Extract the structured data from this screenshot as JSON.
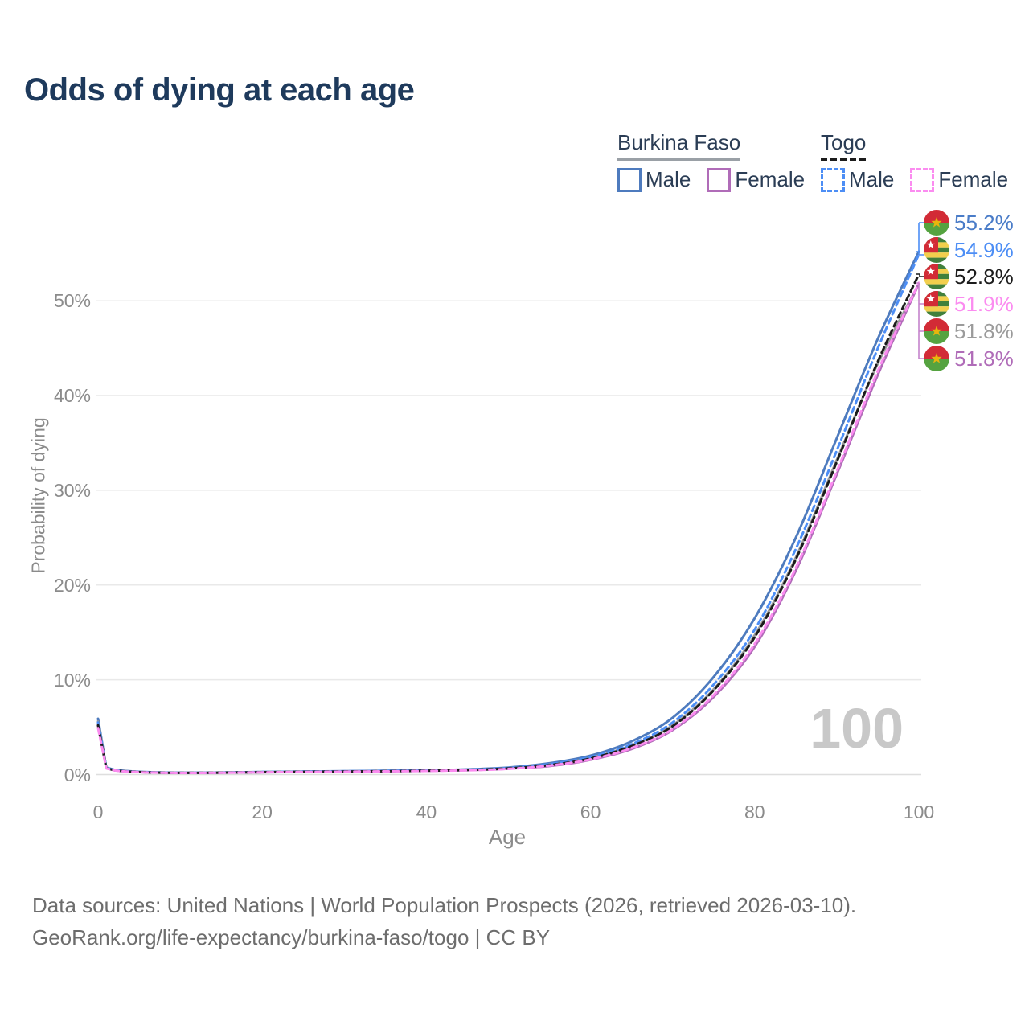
{
  "title": "Odds of dying at each age",
  "legend": {
    "groups": [
      {
        "name": "Burkina Faso",
        "underline_style": "solid",
        "underline_color": "#9aa0a6",
        "items": [
          {
            "label": "Male",
            "color": "#4e7bbe",
            "dash": false
          },
          {
            "label": "Female",
            "color": "#b06cb8",
            "dash": false
          }
        ]
      },
      {
        "name": "Togo",
        "underline_style": "dashed",
        "underline_color": "#1c1c1c",
        "items": [
          {
            "label": "Male",
            "color": "#4d8ef5",
            "dash": true
          },
          {
            "label": "Female",
            "color": "#fb8cf0",
            "dash": true
          }
        ]
      }
    ]
  },
  "y_axis": {
    "title": "Probability of dying",
    "ticks": [
      "0%",
      "10%",
      "20%",
      "30%",
      "40%",
      "50%"
    ]
  },
  "x_axis": {
    "title": "Age",
    "ticks": [
      "0",
      "20",
      "40",
      "60",
      "80",
      "100"
    ]
  },
  "watermark": "100",
  "end_labels": [
    {
      "value": "55.2%",
      "color": "#4a7cc8",
      "flag": "burkina-faso",
      "series": "Burkina Faso Male"
    },
    {
      "value": "54.9%",
      "color": "#4d8ef5",
      "flag": "togo",
      "series": "Togo Male"
    },
    {
      "value": "52.8%",
      "color": "#1c1c1c",
      "flag": "togo",
      "series": "Togo Both sexes"
    },
    {
      "value": "51.9%",
      "color": "#fb8cf0",
      "flag": "togo",
      "series": "Togo Female"
    },
    {
      "value": "51.8%",
      "color": "#9b9b9b",
      "flag": "burkina-faso",
      "series": "Burkina Faso Both sexes"
    },
    {
      "value": "51.8%",
      "color": "#b06cb8",
      "flag": "burkina-faso",
      "series": "Burkina Faso Female"
    }
  ],
  "footer": {
    "line1": "Data sources: United Nations | World Population Prospects (2026, retrieved 2026-03-10).",
    "line2": "GeoRank.org/life-expectancy/burkina-faso/togo | CC BY"
  },
  "flag_colors": {
    "burkina_faso": {
      "red": "#d22b36",
      "green": "#55a340",
      "star": "#e8b50e"
    },
    "togo": {
      "green": "#41803c",
      "yellow": "#f2cf4d",
      "red": "#d22b36",
      "star": "#ffffff"
    }
  },
  "chart_data": {
    "type": "line",
    "title": "Odds of dying at each age",
    "xlabel": "Age",
    "ylabel": "Probability of dying",
    "xlim": [
      0,
      100
    ],
    "ylim": [
      0,
      57
    ],
    "y_unit": "%",
    "grid": true,
    "legend_position": "top-right",
    "x": [
      0,
      1,
      2,
      5,
      10,
      15,
      20,
      25,
      30,
      35,
      40,
      45,
      50,
      55,
      60,
      65,
      70,
      75,
      80,
      85,
      90,
      95,
      100
    ],
    "series": [
      {
        "name": "Burkina Faso Male",
        "country": "Burkina Faso",
        "sex": "Male",
        "color": "#4e7bbe",
        "dash": false,
        "end_value": 55.2,
        "values": [
          5.9,
          0.75,
          0.5,
          0.3,
          0.2,
          0.22,
          0.28,
          0.32,
          0.36,
          0.4,
          0.46,
          0.55,
          0.75,
          1.2,
          2.0,
          3.5,
          6.0,
          10.3,
          16.5,
          25.0,
          35.5,
          46.0,
          55.2
        ]
      },
      {
        "name": "Burkina Faso Both sexes",
        "country": "Burkina Faso",
        "sex": "Both",
        "color": "#9b9b9b",
        "dash": false,
        "end_value": 51.8,
        "values": [
          5.6,
          0.72,
          0.47,
          0.28,
          0.19,
          0.21,
          0.26,
          0.3,
          0.33,
          0.37,
          0.42,
          0.5,
          0.68,
          1.05,
          1.75,
          3.1,
          5.2,
          9.0,
          14.7,
          22.9,
          33.2,
          43.4,
          51.8
        ]
      },
      {
        "name": "Burkina Faso Female",
        "country": "Burkina Faso",
        "sex": "Female",
        "color": "#b06cb8",
        "dash": false,
        "end_value": 51.8,
        "values": [
          5.2,
          0.68,
          0.44,
          0.26,
          0.18,
          0.2,
          0.24,
          0.28,
          0.31,
          0.35,
          0.39,
          0.46,
          0.62,
          0.9,
          1.55,
          2.7,
          4.7,
          8.2,
          13.5,
          21.5,
          31.7,
          42.2,
          51.8
        ]
      },
      {
        "name": "Togo Male",
        "country": "Togo",
        "sex": "Male",
        "color": "#4d8ef5",
        "dash": true,
        "end_value": 54.9,
        "values": [
          5.5,
          0.72,
          0.48,
          0.28,
          0.19,
          0.21,
          0.27,
          0.31,
          0.35,
          0.39,
          0.44,
          0.52,
          0.7,
          1.1,
          1.85,
          3.2,
          5.5,
          9.5,
          15.3,
          23.8,
          34.2,
          45.0,
          54.9
        ]
      },
      {
        "name": "Togo Both sexes",
        "country": "Togo",
        "sex": "Both",
        "color": "#1c1c1c",
        "dash": true,
        "end_value": 52.8,
        "values": [
          5.2,
          0.68,
          0.45,
          0.26,
          0.18,
          0.2,
          0.25,
          0.29,
          0.32,
          0.36,
          0.41,
          0.48,
          0.65,
          1.0,
          1.7,
          3.0,
          5.1,
          8.9,
          14.5,
          22.7,
          33.0,
          43.6,
          52.8
        ]
      },
      {
        "name": "Togo Female",
        "country": "Togo",
        "sex": "Female",
        "color": "#fb8cf0",
        "dash": true,
        "end_value": 51.9,
        "values": [
          4.9,
          0.65,
          0.43,
          0.25,
          0.17,
          0.19,
          0.24,
          0.27,
          0.3,
          0.34,
          0.38,
          0.45,
          0.6,
          0.95,
          1.6,
          2.8,
          4.8,
          8.4,
          13.8,
          21.8,
          32.0,
          42.6,
          51.9
        ]
      }
    ]
  }
}
